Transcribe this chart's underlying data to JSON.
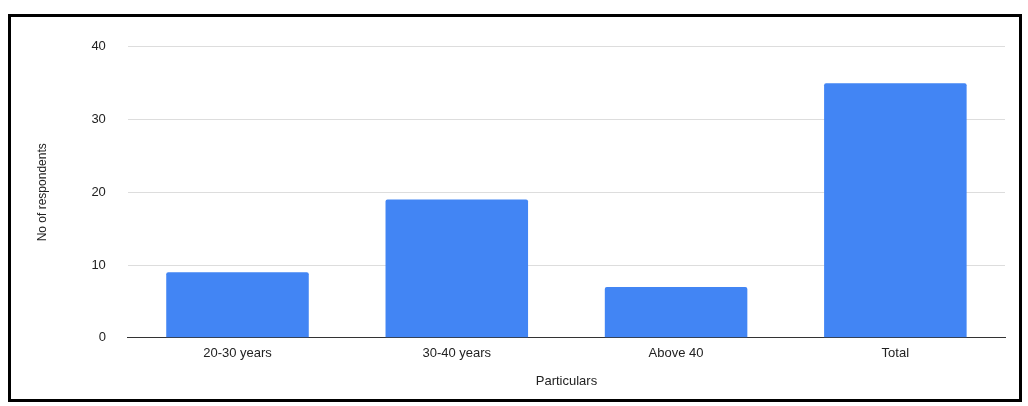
{
  "chart_data": {
    "type": "bar",
    "xlabel": "Particulars",
    "ylabel": "No of respondents",
    "categories": [
      "20-30 years",
      "30-40 years",
      "Above 40",
      "Total"
    ],
    "values": [
      9,
      19,
      7,
      35
    ],
    "color": "#4285f4",
    "ylim": [
      0,
      40
    ],
    "yticks": [
      0,
      10,
      20,
      30,
      40
    ],
    "grid": "y"
  }
}
